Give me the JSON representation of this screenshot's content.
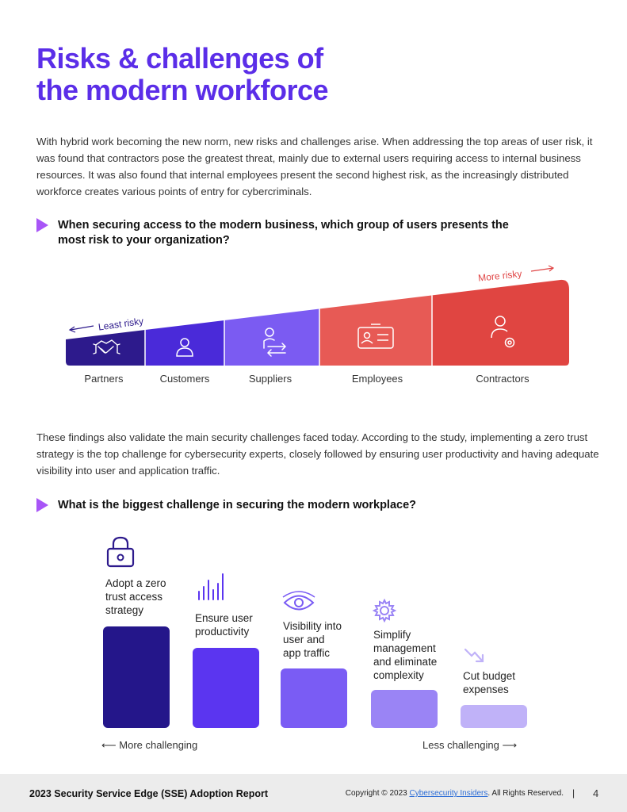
{
  "title": {
    "line1": "Risks & challenges of",
    "line2": "the modern workforce"
  },
  "intro": "With hybrid work becoming the new norm, new risks and challenges arise. When addressing the top areas of user risk, it was found that contractors pose the greatest threat, mainly due to external users requiring access to internal business resources. It was also found that internal employees present the second highest risk, as the increasingly distributed workforce creates various points of entry for cybercriminals.",
  "question1": "When securing access to the modern business, which group of users presents the most risk to your organization?",
  "risk_chart": {
    "least_label": "Least risky",
    "more_label": "More risky",
    "groups": [
      {
        "name": "Partners",
        "icon": "handshake-icon",
        "color": "#2d1a8c"
      },
      {
        "name": "Customers",
        "icon": "person-icon",
        "color": "#4a2ad9"
      },
      {
        "name": "Suppliers",
        "icon": "person-exchange-icon",
        "color": "#7b5bf2"
      },
      {
        "name": "Employees",
        "icon": "id-card-icon",
        "color": "#e75a55"
      },
      {
        "name": "Contractors",
        "icon": "person-gear-icon",
        "color": "#e04541"
      }
    ]
  },
  "findings": "These findings also validate the main security challenges faced today. According to the study, implementing a zero trust strategy is the top challenge for cybersecurity experts, closely followed by ensuring user productivity and having adequate visibility into user and application traffic.",
  "question2": "What is the biggest challenge in securing the modern workplace?",
  "chart_data": {
    "type": "bar",
    "title": "What is the biggest challenge in securing the modern workplace?",
    "categories": [
      "Adopt a zero trust access strategy",
      "Ensure user productivity",
      "Visibility into user and app traffic",
      "Simplify management and eliminate complexity",
      "Cut budget expenses"
    ],
    "label_lines": [
      [
        "Adopt a zero",
        "trust access",
        "strategy"
      ],
      [
        "Ensure user",
        "productivity"
      ],
      [
        "Visibility into",
        "user and",
        "app traffic"
      ],
      [
        "Simplify",
        "management",
        "and eliminate",
        "complexity"
      ],
      [
        "Cut budget",
        "expenses"
      ]
    ],
    "icons": [
      "lock-icon",
      "bar-chart-icon",
      "eye-icon",
      "gear-icon",
      "trend-down-icon"
    ],
    "values": [
      5,
      4,
      3,
      2,
      1
    ],
    "colors": [
      "#24168a",
      "#5b35f0",
      "#7a5cf4",
      "#9a84f5",
      "#c0b2f8"
    ],
    "xlabel_left": "More challenging",
    "xlabel_right": "Less challenging",
    "ylim": [
      0,
      5
    ]
  },
  "footer": {
    "report": "2023 Security Service Edge (SSE) Adoption Report",
    "copyright_prefix": "Copyright © 2023",
    "copyright_link": "Cybersecurity Insiders",
    "copyright_suffix": ". All Rights Reserved.",
    "separator": "|",
    "page": "4"
  }
}
